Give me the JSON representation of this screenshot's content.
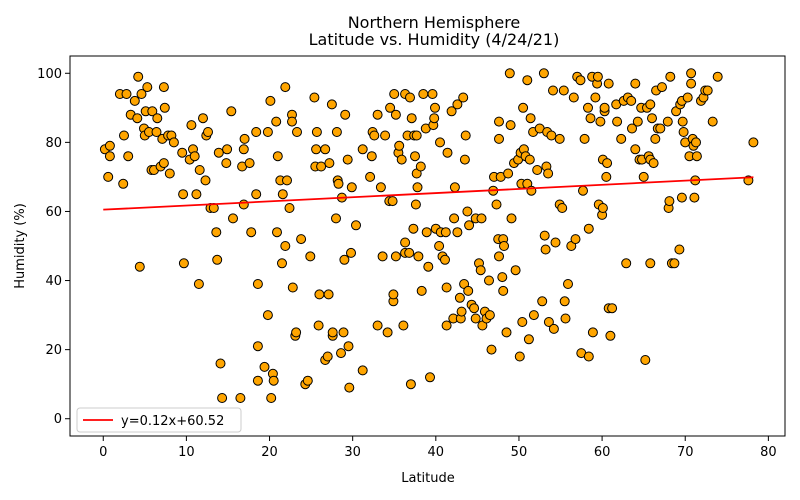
{
  "chart_data": {
    "type": "scatter",
    "title_lines": [
      "Northern Hemisphere",
      "Latitude vs. Humidity (4/24/21)"
    ],
    "xlabel": "Latitude",
    "ylabel": "Humidity (%)",
    "xlim": [
      -4,
      82
    ],
    "ylim": [
      -5,
      105
    ],
    "xticks": [
      0,
      10,
      20,
      30,
      40,
      50,
      60,
      70,
      80
    ],
    "yticks": [
      0,
      20,
      40,
      60,
      80,
      100
    ],
    "marker_color": "#FFA500",
    "marker_edge_color": "#000000",
    "regression": {
      "slope": 0.12,
      "intercept": 60.52,
      "x_range": [
        0,
        78.2
      ],
      "color": "#FF0000",
      "legend_label": "y=0.12x+60.52"
    },
    "legend_position": "lower-left",
    "grid": false,
    "points": [
      [
        0.2,
        78
      ],
      [
        0.6,
        70
      ],
      [
        0.8,
        76
      ],
      [
        0.8,
        79
      ],
      [
        2.0,
        94
      ],
      [
        2.4,
        68
      ],
      [
        2.5,
        82
      ],
      [
        2.8,
        94
      ],
      [
        3.0,
        76
      ],
      [
        3.3,
        88
      ],
      [
        3.8,
        92
      ],
      [
        4.1,
        87
      ],
      [
        4.2,
        99
      ],
      [
        4.4,
        44
      ],
      [
        4.6,
        94
      ],
      [
        4.9,
        84
      ],
      [
        5.0,
        82
      ],
      [
        5.1,
        89
      ],
      [
        5.3,
        96
      ],
      [
        5.5,
        83
      ],
      [
        5.8,
        72
      ],
      [
        5.9,
        89
      ],
      [
        6.1,
        72
      ],
      [
        6.4,
        83
      ],
      [
        6.5,
        87
      ],
      [
        6.9,
        73
      ],
      [
        7.1,
        81
      ],
      [
        7.3,
        96
      ],
      [
        7.3,
        74
      ],
      [
        7.4,
        90
      ],
      [
        7.8,
        82
      ],
      [
        8.0,
        71
      ],
      [
        8.2,
        82
      ],
      [
        8.5,
        80
      ],
      [
        9.5,
        77
      ],
      [
        9.6,
        65
      ],
      [
        9.7,
        45
      ],
      [
        10.4,
        75
      ],
      [
        10.6,
        85
      ],
      [
        10.8,
        78
      ],
      [
        11.0,
        76
      ],
      [
        11.2,
        65
      ],
      [
        11.5,
        39
      ],
      [
        11.6,
        72
      ],
      [
        12.0,
        87
      ],
      [
        12.3,
        69
      ],
      [
        12.4,
        82
      ],
      [
        12.6,
        83
      ],
      [
        12.9,
        61
      ],
      [
        13.3,
        61
      ],
      [
        13.6,
        54
      ],
      [
        13.7,
        46
      ],
      [
        13.9,
        77
      ],
      [
        14.1,
        16
      ],
      [
        14.3,
        6
      ],
      [
        14.8,
        74
      ],
      [
        14.9,
        78
      ],
      [
        15.4,
        89
      ],
      [
        15.6,
        58
      ],
      [
        16.5,
        6
      ],
      [
        16.7,
        73
      ],
      [
        16.9,
        62
      ],
      [
        16.9,
        78
      ],
      [
        17.0,
        81
      ],
      [
        17.6,
        74
      ],
      [
        17.8,
        54
      ],
      [
        18.4,
        83
      ],
      [
        18.4,
        65
      ],
      [
        18.6,
        21
      ],
      [
        18.6,
        39
      ],
      [
        18.6,
        11
      ],
      [
        19.4,
        15
      ],
      [
        19.8,
        83
      ],
      [
        19.8,
        30
      ],
      [
        20.1,
        92
      ],
      [
        20.2,
        6
      ],
      [
        20.4,
        13
      ],
      [
        20.5,
        11
      ],
      [
        20.8,
        86
      ],
      [
        20.9,
        54
      ],
      [
        21.0,
        76
      ],
      [
        21.3,
        69
      ],
      [
        21.5,
        45
      ],
      [
        21.6,
        65
      ],
      [
        21.9,
        96
      ],
      [
        21.9,
        50
      ],
      [
        22.1,
        69
      ],
      [
        22.4,
        61
      ],
      [
        22.7,
        88
      ],
      [
        22.7,
        86
      ],
      [
        22.8,
        38
      ],
      [
        23.1,
        24
      ],
      [
        23.2,
        25
      ],
      [
        23.3,
        83
      ],
      [
        23.8,
        52
      ],
      [
        24.3,
        10
      ],
      [
        24.6,
        11
      ],
      [
        24.9,
        47
      ],
      [
        25.4,
        93
      ],
      [
        25.5,
        73
      ],
      [
        25.6,
        78
      ],
      [
        25.7,
        83
      ],
      [
        25.9,
        27
      ],
      [
        26.0,
        36
      ],
      [
        26.2,
        73
      ],
      [
        26.7,
        78
      ],
      [
        26.7,
        17
      ],
      [
        27.0,
        18
      ],
      [
        27.1,
        36
      ],
      [
        27.2,
        74
      ],
      [
        27.5,
        91
      ],
      [
        27.6,
        24
      ],
      [
        27.6,
        25
      ],
      [
        28.0,
        58
      ],
      [
        28.1,
        83
      ],
      [
        28.2,
        69
      ],
      [
        28.3,
        68
      ],
      [
        28.6,
        19
      ],
      [
        28.7,
        64
      ],
      [
        28.9,
        25
      ],
      [
        29.0,
        46
      ],
      [
        29.1,
        88
      ],
      [
        29.4,
        75
      ],
      [
        29.5,
        21
      ],
      [
        29.6,
        9
      ],
      [
        29.8,
        48
      ],
      [
        29.9,
        67
      ],
      [
        30.4,
        56
      ],
      [
        31.2,
        78
      ],
      [
        31.2,
        14
      ],
      [
        32.1,
        70
      ],
      [
        32.3,
        76
      ],
      [
        32.4,
        83
      ],
      [
        32.6,
        82
      ],
      [
        33.0,
        88
      ],
      [
        33.0,
        27
      ],
      [
        33.4,
        67
      ],
      [
        33.6,
        47
      ],
      [
        33.9,
        82
      ],
      [
        34.2,
        25
      ],
      [
        34.4,
        63
      ],
      [
        34.5,
        90
      ],
      [
        34.8,
        63
      ],
      [
        34.9,
        34
      ],
      [
        34.9,
        36
      ],
      [
        35.0,
        94
      ],
      [
        35.2,
        47
      ],
      [
        35.2,
        88
      ],
      [
        35.5,
        77
      ],
      [
        35.6,
        79
      ],
      [
        35.9,
        75
      ],
      [
        36.1,
        27
      ],
      [
        36.3,
        48
      ],
      [
        36.3,
        51
      ],
      [
        36.3,
        94
      ],
      [
        36.6,
        82
      ],
      [
        36.8,
        48
      ],
      [
        36.9,
        93
      ],
      [
        37.0,
        10
      ],
      [
        37.1,
        87
      ],
      [
        37.3,
        55
      ],
      [
        37.4,
        82
      ],
      [
        37.5,
        76
      ],
      [
        37.6,
        62
      ],
      [
        37.7,
        71
      ],
      [
        37.7,
        82
      ],
      [
        37.8,
        67
      ],
      [
        37.9,
        47
      ],
      [
        38.2,
        73
      ],
      [
        38.3,
        37
      ],
      [
        38.5,
        94
      ],
      [
        38.8,
        84
      ],
      [
        38.9,
        54
      ],
      [
        39.1,
        44
      ],
      [
        39.3,
        12
      ],
      [
        39.6,
        94
      ],
      [
        39.7,
        85
      ],
      [
        39.8,
        87
      ],
      [
        39.9,
        90
      ],
      [
        40.0,
        55
      ],
      [
        40.4,
        50
      ],
      [
        40.5,
        80
      ],
      [
        40.6,
        54
      ],
      [
        40.8,
        47
      ],
      [
        41.1,
        46
      ],
      [
        41.2,
        54
      ],
      [
        41.3,
        38
      ],
      [
        41.3,
        27
      ],
      [
        41.4,
        77
      ],
      [
        41.9,
        89
      ],
      [
        42.1,
        29
      ],
      [
        42.2,
        58
      ],
      [
        42.3,
        67
      ],
      [
        42.6,
        91
      ],
      [
        42.6,
        54
      ],
      [
        42.9,
        35
      ],
      [
        43.0,
        29
      ],
      [
        43.1,
        31
      ],
      [
        43.3,
        93
      ],
      [
        43.4,
        39
      ],
      [
        43.5,
        75
      ],
      [
        43.6,
        82
      ],
      [
        43.8,
        60
      ],
      [
        43.9,
        37
      ],
      [
        44.0,
        56
      ],
      [
        44.3,
        33
      ],
      [
        44.6,
        32
      ],
      [
        44.8,
        58
      ],
      [
        44.8,
        29
      ],
      [
        45.2,
        45
      ],
      [
        45.4,
        43
      ],
      [
        45.5,
        58
      ],
      [
        45.6,
        27
      ],
      [
        45.9,
        31
      ],
      [
        46.1,
        29
      ],
      [
        46.4,
        40
      ],
      [
        46.5,
        30
      ],
      [
        46.7,
        20
      ],
      [
        46.9,
        66
      ],
      [
        47.0,
        70
      ],
      [
        47.3,
        62
      ],
      [
        47.5,
        52
      ],
      [
        47.6,
        86
      ],
      [
        47.6,
        81
      ],
      [
        47.6,
        47
      ],
      [
        47.8,
        70
      ],
      [
        48.0,
        41
      ],
      [
        48.1,
        37
      ],
      [
        48.1,
        52
      ],
      [
        48.2,
        50
      ],
      [
        48.5,
        25
      ],
      [
        48.7,
        71
      ],
      [
        48.9,
        100
      ],
      [
        49.0,
        85
      ],
      [
        49.1,
        58
      ],
      [
        49.4,
        74
      ],
      [
        49.6,
        43
      ],
      [
        49.9,
        75
      ],
      [
        50.1,
        18
      ],
      [
        50.2,
        77
      ],
      [
        50.3,
        68
      ],
      [
        50.4,
        28
      ],
      [
        50.5,
        90
      ],
      [
        50.6,
        78
      ],
      [
        50.8,
        76
      ],
      [
        51.0,
        68
      ],
      [
        51.0,
        98
      ],
      [
        51.2,
        23
      ],
      [
        51.3,
        75
      ],
      [
        51.4,
        87
      ],
      [
        51.5,
        66
      ],
      [
        51.7,
        83
      ],
      [
        51.8,
        30
      ],
      [
        52.2,
        72
      ],
      [
        52.5,
        84
      ],
      [
        52.8,
        34
      ],
      [
        53.0,
        100
      ],
      [
        53.1,
        53
      ],
      [
        53.2,
        49
      ],
      [
        53.3,
        73
      ],
      [
        53.4,
        83
      ],
      [
        53.5,
        71
      ],
      [
        53.6,
        28
      ],
      [
        53.9,
        82
      ],
      [
        54.1,
        95
      ],
      [
        54.2,
        26
      ],
      [
        54.4,
        51
      ],
      [
        54.9,
        62
      ],
      [
        54.9,
        81
      ],
      [
        55.2,
        61
      ],
      [
        55.4,
        95
      ],
      [
        55.5,
        34
      ],
      [
        55.6,
        29
      ],
      [
        55.9,
        39
      ],
      [
        56.3,
        50
      ],
      [
        56.6,
        93
      ],
      [
        56.8,
        52
      ],
      [
        57.0,
        99
      ],
      [
        57.4,
        98
      ],
      [
        57.5,
        19
      ],
      [
        57.7,
        66
      ],
      [
        57.9,
        81
      ],
      [
        58.3,
        90
      ],
      [
        58.4,
        18
      ],
      [
        58.4,
        55
      ],
      [
        58.6,
        87
      ],
      [
        58.8,
        99
      ],
      [
        58.9,
        25
      ],
      [
        59.2,
        93
      ],
      [
        59.4,
        97
      ],
      [
        59.5,
        99
      ],
      [
        59.6,
        62
      ],
      [
        59.8,
        86
      ],
      [
        60.0,
        59
      ],
      [
        60.1,
        61
      ],
      [
        60.1,
        75
      ],
      [
        60.3,
        89
      ],
      [
        60.3,
        90
      ],
      [
        60.5,
        70
      ],
      [
        60.6,
        74
      ],
      [
        60.8,
        97
      ],
      [
        60.8,
        32
      ],
      [
        61.0,
        24
      ],
      [
        61.2,
        32
      ],
      [
        61.7,
        91
      ],
      [
        61.8,
        86
      ],
      [
        62.3,
        81
      ],
      [
        62.6,
        92
      ],
      [
        62.9,
        45
      ],
      [
        63.1,
        93
      ],
      [
        63.5,
        92
      ],
      [
        63.6,
        84
      ],
      [
        64.0,
        97
      ],
      [
        64.0,
        78
      ],
      [
        64.3,
        86
      ],
      [
        64.5,
        75
      ],
      [
        64.7,
        90
      ],
      [
        64.8,
        75
      ],
      [
        65.0,
        70
      ],
      [
        65.2,
        17
      ],
      [
        65.4,
        90
      ],
      [
        65.6,
        76
      ],
      [
        65.8,
        45
      ],
      [
        65.8,
        75
      ],
      [
        65.8,
        91
      ],
      [
        66.0,
        87
      ],
      [
        66.2,
        74
      ],
      [
        66.4,
        81
      ],
      [
        66.5,
        95
      ],
      [
        66.7,
        84
      ],
      [
        67.0,
        84
      ],
      [
        67.2,
        96
      ],
      [
        67.9,
        86
      ],
      [
        68.0,
        61
      ],
      [
        68.1,
        63
      ],
      [
        68.2,
        99
      ],
      [
        68.4,
        45
      ],
      [
        68.7,
        45
      ],
      [
        68.9,
        89
      ],
      [
        69.3,
        49
      ],
      [
        69.4,
        91
      ],
      [
        69.6,
        92
      ],
      [
        69.6,
        64
      ],
      [
        69.7,
        86
      ],
      [
        69.8,
        83
      ],
      [
        70.0,
        80
      ],
      [
        70.3,
        93
      ],
      [
        70.5,
        76
      ],
      [
        70.7,
        100
      ],
      [
        70.7,
        97
      ],
      [
        70.9,
        81
      ],
      [
        71.0,
        79
      ],
      [
        71.1,
        64
      ],
      [
        71.2,
        69
      ],
      [
        71.3,
        80
      ],
      [
        71.4,
        76
      ],
      [
        71.9,
        92
      ],
      [
        72.2,
        93
      ],
      [
        72.4,
        95
      ],
      [
        72.7,
        95
      ],
      [
        73.3,
        86
      ],
      [
        73.9,
        99
      ],
      [
        77.6,
        69
      ],
      [
        78.2,
        80
      ]
    ]
  }
}
